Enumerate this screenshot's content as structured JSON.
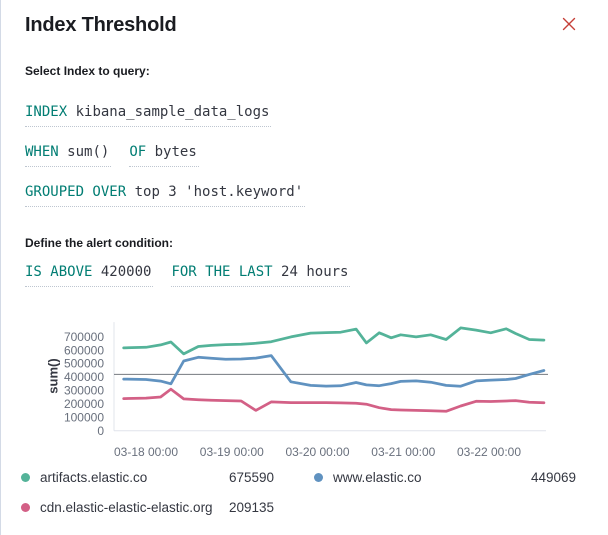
{
  "panel": {
    "title": "Index Threshold"
  },
  "sections": {
    "index_label": "Select Index to query:",
    "condition_label": "Define the alert condition:"
  },
  "expressions": {
    "index": {
      "keyword": "INDEX",
      "value": "kibana_sample_data_logs"
    },
    "when": {
      "keyword": "WHEN",
      "value": "sum()"
    },
    "of": {
      "keyword": "OF",
      "value": "bytes"
    },
    "grouped": {
      "keyword": "GROUPED OVER",
      "value": "top 3 'host.keyword'"
    },
    "threshold": {
      "keyword": "IS ABOVE",
      "value": "420000"
    },
    "window": {
      "keyword": "FOR THE LAST",
      "value": "24 hours"
    }
  },
  "colors": {
    "keyword_teal": "#017D73",
    "text_dark": "#343741",
    "text_gray": "#69707D",
    "close_red": "#c63f38",
    "threshold_line": "#75797f",
    "axis_line": "#e0e4eb",
    "series_green": "#54B399",
    "series_blue": "#6092C0",
    "series_pink": "#D36086"
  },
  "chart_data": {
    "type": "line",
    "ylabel": "sum()",
    "ylim": [
      0,
      810000
    ],
    "y_ticks": [
      700000,
      600000,
      500000,
      400000,
      300000,
      200000,
      100000,
      0
    ],
    "x_unit": "days relative to 03-18 00:00",
    "xlim_days": [
      -0.37,
      4.66
    ],
    "x_ticks": [
      {
        "day": 0,
        "label": "03-18 00:00"
      },
      {
        "day": 1,
        "label": "03-19 00:00"
      },
      {
        "day": 2,
        "label": "03-20 00:00"
      },
      {
        "day": 3,
        "label": "03-21 00:00"
      },
      {
        "day": 4,
        "label": "03-22 00:00"
      }
    ],
    "threshold_value": 420000,
    "grid": false,
    "legend_position": "bottom",
    "x_days": [
      -0.26,
      0,
      0.17,
      0.29,
      0.44,
      0.61,
      0.76,
      0.93,
      1.11,
      1.28,
      1.46,
      1.69,
      1.92,
      2.1,
      2.27,
      2.45,
      2.57,
      2.72,
      2.86,
      2.97,
      3.15,
      3.32,
      3.5,
      3.67,
      3.85,
      4.02,
      4.2,
      4.31,
      4.47,
      4.64
    ],
    "series": [
      {
        "name": "artifacts.elastic.co",
        "color": "#54B399",
        "last_value": 675590,
        "values": [
          618000,
          622000,
          640000,
          662000,
          573000,
          628000,
          636000,
          642000,
          645000,
          652000,
          664000,
          700000,
          728000,
          732000,
          735000,
          758000,
          655000,
          730000,
          693000,
          715000,
          700000,
          715000,
          680000,
          767000,
          750000,
          730000,
          760000,
          725000,
          680000,
          675590
        ]
      },
      {
        "name": "www.elastic.co",
        "color": "#6092C0",
        "last_value": 449069,
        "values": [
          385000,
          382000,
          370000,
          350000,
          520000,
          548000,
          540000,
          533000,
          535000,
          542000,
          560000,
          365000,
          338000,
          333000,
          335000,
          360000,
          342000,
          336000,
          352000,
          368000,
          372000,
          362000,
          338000,
          332000,
          372000,
          378000,
          382000,
          390000,
          420000,
          449069
        ]
      },
      {
        "name": "cdn.elastic-elastic-elastic.org",
        "color": "#D36086",
        "last_value": 209135,
        "values": [
          240000,
          244000,
          252000,
          310000,
          238000,
          232000,
          228000,
          225000,
          222000,
          152000,
          215000,
          210000,
          210000,
          210000,
          208000,
          205000,
          198000,
          172000,
          158000,
          155000,
          152000,
          150000,
          145000,
          185000,
          220000,
          218000,
          222000,
          225000,
          212000,
          209135
        ]
      }
    ]
  },
  "legend": {
    "items": [
      {
        "label": "artifacts.elastic.co",
        "value": "675590",
        "color": "#54B399"
      },
      {
        "label": "www.elastic.co",
        "value": "449069",
        "color": "#6092C0"
      },
      {
        "label": "cdn.elastic-elastic-elastic.org",
        "value": "209135",
        "color": "#D36086"
      }
    ]
  }
}
